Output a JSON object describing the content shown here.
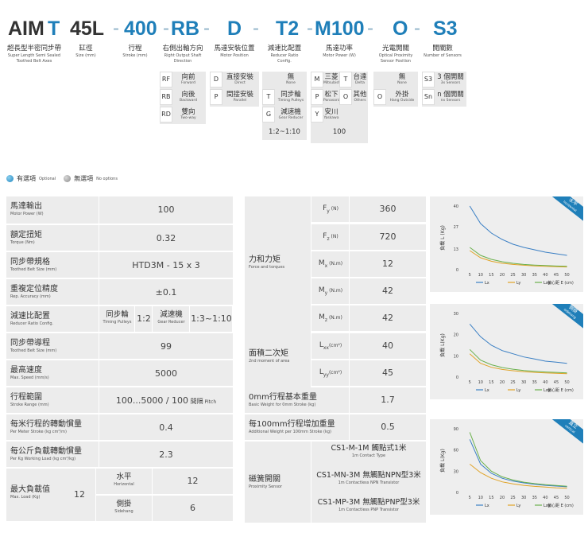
{
  "model_code": {
    "segments": [
      "AIM",
      "T",
      "45L",
      "400",
      "RB",
      "D",
      "T2",
      "M100",
      "O",
      "S3"
    ],
    "separator": "-"
  },
  "labels": [
    {
      "zh": "超長型半密同步帶",
      "en1": "Super Length Semi Sealed",
      "en2": "Toothed Belt Axes"
    },
    {
      "zh": "缸徑",
      "en1": "Size (mm)",
      "en2": ""
    },
    {
      "zh": "行程",
      "en1": "Stroke (mm)",
      "en2": ""
    },
    {
      "zh": "右側出軸方向",
      "en1": "Right Output Shaft",
      "en2": "Direction"
    },
    {
      "zh": "馬達安裝位置",
      "en1": "Motor Position",
      "en2": ""
    },
    {
      "zh": "減速比配置",
      "en1": "Reducer Ratio",
      "en2": "Config."
    },
    {
      "zh": "馬達功率",
      "en1": "Motor Power (W)",
      "en2": ""
    },
    {
      "zh": "光電開關",
      "en1": "Optical Proximity",
      "en2": "Sensor Position"
    },
    {
      "zh": "開關數",
      "en1": "Number of Sensors",
      "en2": ""
    }
  ],
  "options": {
    "direction": [
      {
        "code": "RF",
        "zh": "向前",
        "en": "Forward"
      },
      {
        "code": "RB",
        "zh": "向後",
        "en": "Backward"
      },
      {
        "code": "RD",
        "zh": "雙向",
        "en": "Two-way"
      }
    ],
    "motor_position": [
      {
        "code": "D",
        "zh": "直接安裝",
        "en": "Direct"
      },
      {
        "code": "P",
        "zh": "間接安裝",
        "en": "Parallel"
      }
    ],
    "reducer": [
      {
        "code": "",
        "zh": "無",
        "en": "None"
      },
      {
        "code": "T",
        "zh": "同步輪",
        "en": "Timing Pulleys"
      },
      {
        "code": "G",
        "zh": "減速機",
        "en": "Gear Reducer"
      }
    ],
    "reducer_ratio": "1:2~1:10",
    "motor_power": [
      {
        "code": "M",
        "zh": "三菱",
        "en": "Mitsubishi"
      },
      {
        "code": "T",
        "zh": "台達",
        "en": "Delta"
      },
      {
        "code": "P",
        "zh": "松下",
        "en": "Panasonic"
      },
      {
        "code": "O",
        "zh": "其他",
        "en": "Others"
      },
      {
        "code": "Y",
        "zh": "安川",
        "en": "Yaskawa"
      }
    ],
    "motor_power_value": "100",
    "sensor": [
      {
        "code": "",
        "zh": "無",
        "en": "None"
      },
      {
        "code": "O",
        "zh": "外掛",
        "en": "Hang Outside"
      }
    ],
    "sensor_count": [
      {
        "code": "S3",
        "zh": "3 個開關",
        "en": "3x Sensors"
      },
      {
        "code": "Sn",
        "zh": "n 個開關",
        "en": "nx Sensors"
      }
    ]
  },
  "legend": {
    "optional_zh": "有選項",
    "optional_en": "Optional",
    "none_zh": "無選項",
    "none_en": "No options"
  },
  "left_table": {
    "rows": [
      {
        "zh": "馬達輸出",
        "en": "Motor Power (W)",
        "value": "100"
      },
      {
        "zh": "額定扭矩",
        "en": "Torque (Nm)",
        "value": "0.32"
      },
      {
        "zh": "同步帶規格",
        "en": "Toothed Belt Size (mm)",
        "value": "HTD3M - 15 x 3"
      },
      {
        "zh": "重複定位精度",
        "en": "Rep. Accuracy (mm)",
        "value": "±0.1"
      },
      {
        "zh": "減速比配置",
        "en": "Reducer Ratio Config."
      },
      {
        "zh": "同步帶導程",
        "en": "Toothed Belt Size (mm)",
        "value": "99"
      },
      {
        "zh": "最高速度",
        "en": "Max. Speed (mm/s)",
        "value": "5000"
      },
      {
        "zh": "行程範圍",
        "en": "Stroke Range (mm)",
        "value": "100...5000 / 100",
        "value_zh": "間隔",
        "value_en": "Pitch"
      },
      {
        "zh": "每米行程的轉動慣量",
        "en": "Per Meter Stroke (kg cm²/m)",
        "value": "0.4"
      },
      {
        "zh": "每公斤負載轉動慣量",
        "en": "Per Kg Working Load (kg cm²/kg)",
        "value": "2.3"
      }
    ],
    "reducer": {
      "pulley_zh": "同步輪",
      "pulley_en": "Timing Pulleys",
      "pulley_val": "1:2",
      "gear_zh": "減速機",
      "gear_en": "Gear Reducer",
      "gear_val": "1:3~1:10"
    },
    "max_load": {
      "zh": "最大負載值",
      "en": "Max. Load (Kg)",
      "value": "12",
      "h_zh": "水平",
      "h_en": "Horizontal",
      "h_val": "12",
      "s_zh": "側掛",
      "s_en": "Sidehang",
      "s_val": "6"
    }
  },
  "right_table": {
    "force": {
      "zh": "力和力矩",
      "en": "Force and torques"
    },
    "forces": [
      {
        "sym": "F",
        "sub": "y",
        "unit": "(N)",
        "value": "360"
      },
      {
        "sym": "F",
        "sub": "z",
        "unit": "(N)",
        "value": "720"
      },
      {
        "sym": "M",
        "sub": "x",
        "unit": "(N.m)",
        "value": "12"
      },
      {
        "sym": "M",
        "sub": "y",
        "unit": "(N.m)",
        "value": "42"
      },
      {
        "sym": "M",
        "sub": "z",
        "unit": "(N.m)",
        "value": "42"
      }
    ],
    "moment": {
      "zh": "面積二次矩",
      "en": "2nd moment of area"
    },
    "moments": [
      {
        "sym": "L",
        "sub": "xx",
        "unit": "(cm⁴)",
        "value": "40"
      },
      {
        "sym": "L",
        "sub": "yy",
        "unit": "(cm⁴)",
        "value": "45"
      }
    ],
    "weight0": {
      "zh": "0mm行程基本重量",
      "en": "Basic Weight for 0mm Stroke (kg)",
      "value": "1.7"
    },
    "weight100": {
      "zh": "每100mm行程增加重量",
      "en": "Additional Weight per 100mm Stroke (kg)",
      "value": "0.5"
    },
    "switch": {
      "zh": "磁簧開關",
      "en": "Proximity Sensor"
    },
    "switches": [
      {
        "zh": "CS1-M-1M 觸點式1米",
        "en": "1m Contact Type"
      },
      {
        "zh": "CS1-MN-3M 無觸點NPN型3米",
        "en": "1m Contactless NPN Transistor"
      },
      {
        "zh": "CS1-MP-3M 無觸點PNP型3米",
        "en": "1m Contactless PNP Transistor"
      }
    ]
  },
  "chart_data": [
    {
      "type": "line",
      "tag_zh": "水平",
      "tag_en": "horizontal",
      "ylabel": "負載 L (Kg)",
      "xlabel": "偏心距 E (cm)",
      "x": [
        5,
        10,
        15,
        20,
        25,
        30,
        35,
        40,
        45,
        50
      ],
      "xlim": [
        2,
        52
      ],
      "ylim": [
        0,
        40
      ],
      "yticks": [
        0,
        13,
        27,
        40
      ],
      "series": [
        {
          "name": "Lx",
          "color": "#3a7fc4",
          "values": [
            40,
            29,
            23,
            19,
            16,
            14,
            12.5,
            11,
            10,
            9
          ]
        },
        {
          "name": "Ly",
          "color": "#e0a326",
          "values": [
            12,
            7.5,
            5.3,
            4,
            3.3,
            2.8,
            2.4,
            2.1,
            1.9,
            1.7
          ]
        },
        {
          "name": "Lxy",
          "color": "#6ab04c",
          "values": [
            14,
            9,
            6.5,
            5,
            4,
            3.3,
            2.9,
            2.6,
            2.3,
            2.1
          ]
        }
      ],
      "legend_labels": [
        "Lx",
        "Ly",
        "Lxy"
      ]
    },
    {
      "type": "line",
      "tag_zh": "側掛",
      "tag_en": "sidehang",
      "ylabel": "負載 L(Kg)",
      "xlabel": "偏心距 E (cm)",
      "x": [
        5,
        10,
        15,
        20,
        25,
        30,
        35,
        40,
        45,
        50
      ],
      "xlim": [
        2,
        52
      ],
      "ylim": [
        0,
        30
      ],
      "yticks": [
        0,
        10,
        20,
        30
      ],
      "series": [
        {
          "name": "Lx",
          "color": "#3a7fc4",
          "values": [
            25,
            19,
            15,
            12.5,
            11,
            9.5,
            8.5,
            7.5,
            7,
            6.5
          ]
        },
        {
          "name": "Ly",
          "color": "#e0a326",
          "values": [
            11,
            6.5,
            4.6,
            3.6,
            3,
            2.5,
            2.2,
            2,
            1.8,
            1.6
          ]
        },
        {
          "name": "Lxy",
          "color": "#6ab04c",
          "values": [
            13,
            8,
            5.8,
            4.5,
            3.7,
            3.1,
            2.7,
            2.4,
            2.2,
            2
          ]
        }
      ],
      "legend_labels": [
        "Lx",
        "Ly",
        "Lxy"
      ]
    },
    {
      "type": "line",
      "tag_zh": "直立",
      "tag_en": "vertical",
      "ylabel": "負載 L(Kg)",
      "xlabel": "偏心距 E (cm)",
      "x": [
        5,
        10,
        15,
        20,
        25,
        30,
        35,
        40,
        45,
        50
      ],
      "xlim": [
        2,
        52
      ],
      "ylim": [
        0,
        90
      ],
      "yticks": [
        0,
        30,
        60,
        90
      ],
      "series": [
        {
          "name": "Lx",
          "color": "#3a7fc4",
          "values": [
            75,
            40,
            27,
            20,
            16,
            13.5,
            11.5,
            10,
            9,
            8
          ]
        },
        {
          "name": "Ly",
          "color": "#e0a326",
          "values": [
            40,
            28,
            20,
            15,
            12,
            10,
            8.5,
            7.5,
            6.5,
            6
          ]
        },
        {
          "name": "Lxy",
          "color": "#6ab04c",
          "values": [
            85,
            45,
            30,
            22,
            17.5,
            14.5,
            12.5,
            11,
            9.8,
            8.8
          ]
        }
      ],
      "legend_labels": [
        "Lx",
        "Ly",
        "Lxy"
      ]
    }
  ]
}
